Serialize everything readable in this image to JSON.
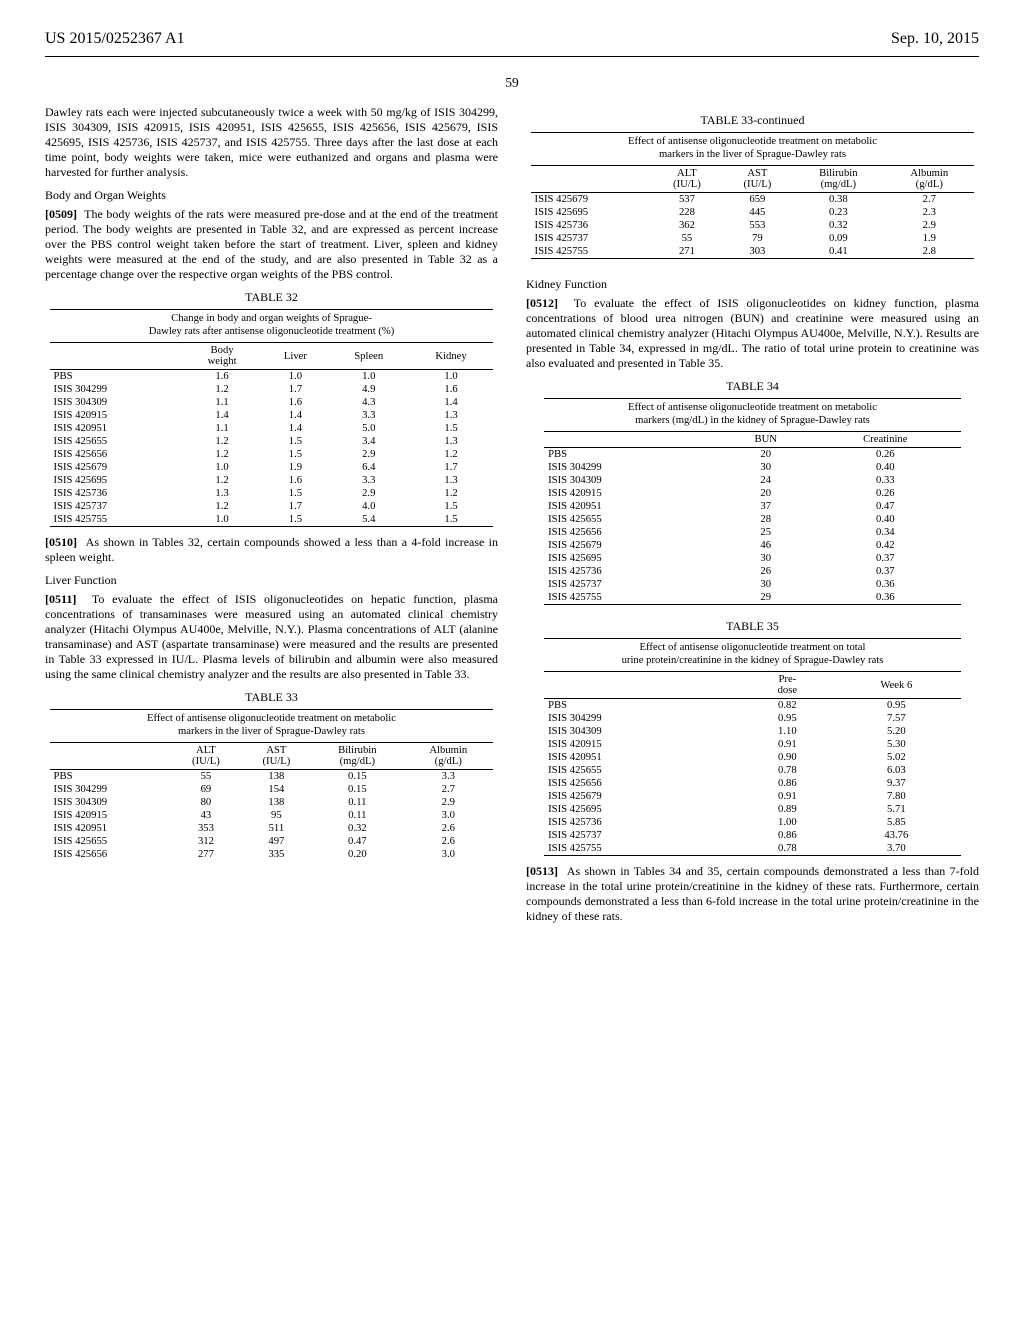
{
  "header": {
    "pub": "US 2015/0252367 A1",
    "date": "Sep. 10, 2015"
  },
  "pageNumber": "59",
  "col1": {
    "p1": "Dawley rats each were injected subcutaneously twice a week with 50 mg/kg of ISIS 304299, ISIS 304309, ISIS 420915, ISIS 420951, ISIS 425655, ISIS 425656, ISIS 425679, ISIS 425695, ISIS 425736, ISIS 425737, and ISIS 425755. Three days after the last dose at each time point, body weights were taken, mice were euthanized and organs and plasma were harvested for further analysis.",
    "h1": "Body and Organ Weights",
    "p2n": "[0509]",
    "p2": "The body weights of the rats were measured pre-dose and at the end of the treatment period. The body weights are presented in Table 32, and are expressed as percent increase over the PBS control weight taken before the start of treatment. Liver, spleen and kidney weights were measured at the end of the study, and are also presented in Table 32 as a percentage change over the respective organ weights of the PBS control.",
    "t32": {
      "label": "TABLE 32",
      "caption1": "Change in body and organ weights of Sprague-",
      "caption2": "Dawley rats after antisense oligonucleotide treatment (%)",
      "cols": [
        "",
        "Body\nweight",
        "Liver",
        "Spleen",
        "Kidney"
      ],
      "rows": [
        [
          "PBS",
          "1.6",
          "1.0",
          "1.0",
          "1.0"
        ],
        [
          "ISIS 304299",
          "1.2",
          "1.7",
          "4.9",
          "1.6"
        ],
        [
          "ISIS 304309",
          "1.1",
          "1.6",
          "4.3",
          "1.4"
        ],
        [
          "ISIS 420915",
          "1.4",
          "1.4",
          "3.3",
          "1.3"
        ],
        [
          "ISIS 420951",
          "1.1",
          "1.4",
          "5.0",
          "1.5"
        ],
        [
          "ISIS 425655",
          "1.2",
          "1.5",
          "3.4",
          "1.3"
        ],
        [
          "ISIS 425656",
          "1.2",
          "1.5",
          "2.9",
          "1.2"
        ],
        [
          "ISIS 425679",
          "1.0",
          "1.9",
          "6.4",
          "1.7"
        ],
        [
          "ISIS 425695",
          "1.2",
          "1.6",
          "3.3",
          "1.3"
        ],
        [
          "ISIS 425736",
          "1.3",
          "1.5",
          "2.9",
          "1.2"
        ],
        [
          "ISIS 425737",
          "1.2",
          "1.7",
          "4.0",
          "1.5"
        ],
        [
          "ISIS 425755",
          "1.0",
          "1.5",
          "5.4",
          "1.5"
        ]
      ]
    },
    "p3n": "[0510]",
    "p3": "As shown in Tables 32, certain compounds showed a less than a 4-fold increase in spleen weight.",
    "h2": "Liver Function",
    "p4n": "[0511]",
    "p4": "To evaluate the effect of ISIS oligonucleotides on hepatic function, plasma concentrations of transaminases were measured using an automated clinical chemistry analyzer (Hitachi Olympus AU400e, Melville, N.Y.). Plasma concentrations of ALT (alanine transaminase) and AST (aspartate transaminase) were measured and the results are presented in Table 33 expressed in IU/L. Plasma levels of bilirubin and albumin were also measured using the same clinical chemistry analyzer and the results are also presented in Table 33.",
    "t33": {
      "label": "TABLE 33",
      "caption1": "Effect of antisense oligonucleotide treatment on metabolic",
      "caption2": "markers in the liver of Sprague-Dawley rats",
      "cols": [
        "",
        "ALT\n(IU/L)",
        "AST\n(IU/L)",
        "Bilirubin\n(mg/dL)",
        "Albumin\n(g/dL)"
      ],
      "rows": [
        [
          "PBS",
          "55",
          "138",
          "0.15",
          "3.3"
        ],
        [
          "ISIS 304299",
          "69",
          "154",
          "0.15",
          "2.7"
        ],
        [
          "ISIS 304309",
          "80",
          "138",
          "0.11",
          "2.9"
        ],
        [
          "ISIS 420915",
          "43",
          "95",
          "0.11",
          "3.0"
        ],
        [
          "ISIS 420951",
          "353",
          "511",
          "0.32",
          "2.6"
        ],
        [
          "ISIS 425655",
          "312",
          "497",
          "0.47",
          "2.6"
        ],
        [
          "ISIS 425656",
          "277",
          "335",
          "0.20",
          "3.0"
        ]
      ]
    }
  },
  "col2": {
    "t33c": {
      "label": "TABLE 33-continued",
      "caption1": "Effect of antisense oligonucleotide treatment on metabolic",
      "caption2": "markers in the liver of Sprague-Dawley rats",
      "cols": [
        "",
        "ALT\n(IU/L)",
        "AST\n(IU/L)",
        "Bilirubin\n(mg/dL)",
        "Albumin\n(g/dL)"
      ],
      "rows": [
        [
          "ISIS 425679",
          "537",
          "659",
          "0.38",
          "2.7"
        ],
        [
          "ISIS 425695",
          "228",
          "445",
          "0.23",
          "2.3"
        ],
        [
          "ISIS 425736",
          "362",
          "553",
          "0.32",
          "2.9"
        ],
        [
          "ISIS 425737",
          "55",
          "79",
          "0.09",
          "1.9"
        ],
        [
          "ISIS 425755",
          "271",
          "303",
          "0.41",
          "2.8"
        ]
      ]
    },
    "h1": "Kidney Function",
    "p1n": "[0512]",
    "p1": "To evaluate the effect of ISIS oligonucleotides on kidney function, plasma concentrations of blood urea nitrogen (BUN) and creatinine were measured using an automated clinical chemistry analyzer (Hitachi Olympus AU400e, Melville, N.Y.). Results are presented in Table 34, expressed in mg/dL. The ratio of total urine protein to creatinine was also evaluated and presented in Table 35.",
    "t34": {
      "label": "TABLE 34",
      "caption1": "Effect of antisense oligonucleotide treatment on metabolic",
      "caption2": "markers (mg/dL) in the kidney of Sprague-Dawley rats",
      "cols": [
        "",
        "BUN",
        "Creatinine"
      ],
      "rows": [
        [
          "PBS",
          "20",
          "0.26"
        ],
        [
          "ISIS 304299",
          "30",
          "0.40"
        ],
        [
          "ISIS 304309",
          "24",
          "0.33"
        ],
        [
          "ISIS 420915",
          "20",
          "0.26"
        ],
        [
          "ISIS 420951",
          "37",
          "0.47"
        ],
        [
          "ISIS 425655",
          "28",
          "0.40"
        ],
        [
          "ISIS 425656",
          "25",
          "0.34"
        ],
        [
          "ISIS 425679",
          "46",
          "0.42"
        ],
        [
          "ISIS 425695",
          "30",
          "0.37"
        ],
        [
          "ISIS 425736",
          "26",
          "0.37"
        ],
        [
          "ISIS 425737",
          "30",
          "0.36"
        ],
        [
          "ISIS 425755",
          "29",
          "0.36"
        ]
      ]
    },
    "t35": {
      "label": "TABLE 35",
      "caption1": "Effect of antisense oligonucleotide treatment on total",
      "caption2": "urine protein/creatinine in the kidney of Sprague-Dawley rats",
      "cols": [
        "",
        "Pre-\ndose",
        "Week 6"
      ],
      "rows": [
        [
          "PBS",
          "0.82",
          "0.95"
        ],
        [
          "ISIS 304299",
          "0.95",
          "7.57"
        ],
        [
          "ISIS 304309",
          "1.10",
          "5.20"
        ],
        [
          "ISIS 420915",
          "0.91",
          "5.30"
        ],
        [
          "ISIS 420951",
          "0.90",
          "5.02"
        ],
        [
          "ISIS 425655",
          "0.78",
          "6.03"
        ],
        [
          "ISIS 425656",
          "0.86",
          "9.37"
        ],
        [
          "ISIS 425679",
          "0.91",
          "7.80"
        ],
        [
          "ISIS 425695",
          "0.89",
          "5.71"
        ],
        [
          "ISIS 425736",
          "1.00",
          "5.85"
        ],
        [
          "ISIS 425737",
          "0.86",
          "43.76"
        ],
        [
          "ISIS 425755",
          "0.78",
          "3.70"
        ]
      ]
    },
    "p2n": "[0513]",
    "p2": "As shown in Tables 34 and 35, certain compounds demonstrated a less than 7-fold increase in the total urine protein/creatinine in the kidney of these rats. Furthermore, certain compounds demonstrated a less than 6-fold increase in the total urine protein/creatinine in the kidney of these rats."
  }
}
